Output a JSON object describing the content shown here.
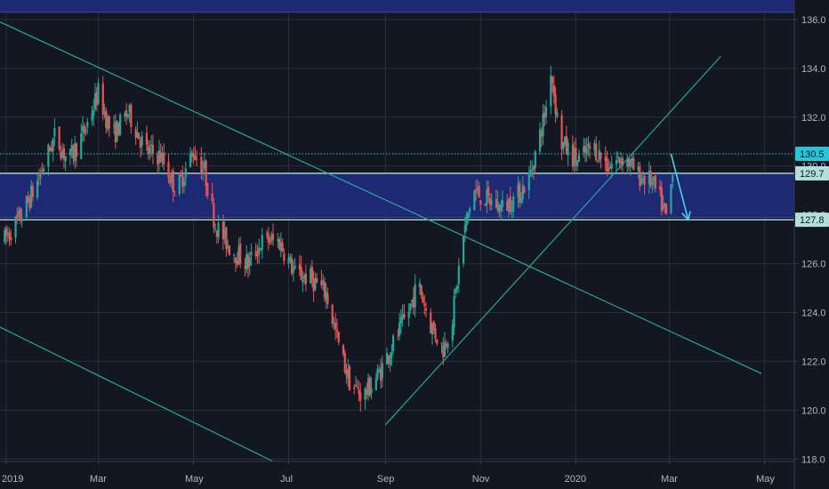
{
  "chart_data": {
    "type": "candlestick",
    "title": "",
    "x_ticks": [
      "2019",
      "Mar",
      "May",
      "Jul",
      "Sep",
      "Nov",
      "2020",
      "Mar",
      "May"
    ],
    "y_ticks": [
      118.0,
      120.0,
      122.0,
      124.0,
      126.0,
      128.0,
      130.0,
      132.0,
      134.0,
      136.0
    ],
    "ylim": [
      117.9,
      136.8
    ],
    "xlim": [
      "2018-12-28",
      "2020-05-20"
    ],
    "grid": true,
    "colors": {
      "background": "#131722",
      "grid": "#2a2e39",
      "up": "#26a69a",
      "down": "#ef5350",
      "zone": "#1e2a78",
      "trendline": "#26a69a",
      "level": "#b2dfdb",
      "dotted_level": "#26c6da",
      "arrow": "#4dd0e1",
      "label_text": "#b2b5be"
    },
    "price_badges": [
      {
        "label": "130.5",
        "value": 130.5,
        "style": "dotted"
      },
      {
        "label": "129.7",
        "value": 129.7,
        "style": "level"
      },
      {
        "label": "127.8",
        "value": 127.8,
        "style": "level"
      }
    ],
    "zones": [
      {
        "from": 127.9,
        "to": 129.7
      },
      {
        "from": 136.3,
        "to": 136.8
      }
    ],
    "trendlines": [
      {
        "start": [
          "2018-12-28",
          135.9
        ],
        "end": [
          "2020-04-29",
          121.5
        ]
      },
      {
        "start": [
          "2018-12-28",
          123.4
        ],
        "end": [
          "2019-06-21",
          117.9
        ]
      },
      {
        "start": [
          "2019-09-01",
          119.4
        ],
        "end": [
          "2020-04-03",
          134.5
        ]
      }
    ],
    "forecast_arrow": {
      "points": [
        [
          "2020-03-02",
          130.5
        ],
        [
          "2020-03-13",
          127.8
        ]
      ]
    },
    "series_ohlc_keypoints": [
      [
        "2018-12-31",
        127.0
      ],
      [
        "2019-01-10",
        127.9
      ],
      [
        "2019-01-20",
        129.2
      ],
      [
        "2019-02-01",
        131.2
      ],
      [
        "2019-02-10",
        130.2
      ],
      [
        "2019-02-20",
        131.4
      ],
      [
        "2019-03-01",
        133.0
      ],
      [
        "2019-03-10",
        131.2
      ],
      [
        "2019-03-20",
        132.2
      ],
      [
        "2019-04-01",
        130.6
      ],
      [
        "2019-04-10",
        130.4
      ],
      [
        "2019-04-20",
        129.0
      ],
      [
        "2019-05-01",
        130.6
      ],
      [
        "2019-05-08",
        129.8
      ],
      [
        "2019-05-15",
        127.6
      ],
      [
        "2019-05-25",
        126.6
      ],
      [
        "2019-06-05",
        126.0
      ],
      [
        "2019-06-15",
        127.0
      ],
      [
        "2019-06-25",
        126.9
      ],
      [
        "2019-07-05",
        125.6
      ],
      [
        "2019-07-15",
        125.4
      ],
      [
        "2019-07-25",
        124.8
      ],
      [
        "2019-08-03",
        122.4
      ],
      [
        "2019-08-10",
        121.0
      ],
      [
        "2019-08-18",
        120.6
      ],
      [
        "2019-08-28",
        121.5
      ],
      [
        "2019-09-05",
        122.6
      ],
      [
        "2019-09-15",
        123.9
      ],
      [
        "2019-09-22",
        125.2
      ],
      [
        "2019-09-30",
        123.5
      ],
      [
        "2019-10-08",
        122.5
      ],
      [
        "2019-10-14",
        123.8
      ],
      [
        "2019-10-20",
        126.8
      ],
      [
        "2019-10-27",
        129.0
      ],
      [
        "2019-11-05",
        128.6
      ],
      [
        "2019-11-15",
        128.3
      ],
      [
        "2019-11-25",
        128.8
      ],
      [
        "2019-12-02",
        129.5
      ],
      [
        "2019-12-08",
        131.0
      ],
      [
        "2019-12-13",
        132.4
      ],
      [
        "2019-12-16",
        134.0
      ],
      [
        "2019-12-22",
        131.0
      ],
      [
        "2020-01-02",
        130.2
      ],
      [
        "2020-01-12",
        130.8
      ],
      [
        "2020-01-22",
        130.0
      ],
      [
        "2020-02-01",
        130.4
      ],
      [
        "2020-02-10",
        129.6
      ],
      [
        "2020-02-18",
        129.4
      ],
      [
        "2020-02-24",
        128.6
      ],
      [
        "2020-02-28",
        127.9
      ],
      [
        "2020-03-03",
        129.6
      ]
    ]
  }
}
